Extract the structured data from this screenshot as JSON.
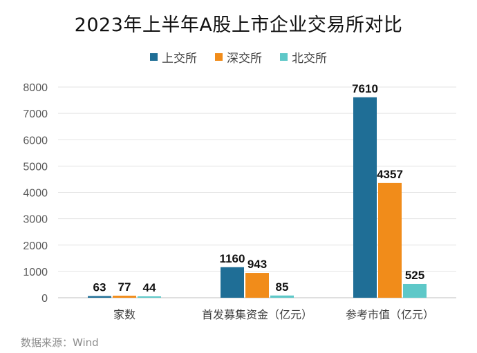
{
  "chart_data": {
    "type": "bar",
    "title": "2023年上半年A股上市企业交易所对比",
    "categories": [
      "家数",
      "首发募集资金（亿元）",
      "参考市值（亿元）"
    ],
    "series": [
      {
        "name": "上交所",
        "color": "#1f6e96",
        "values": [
          63,
          1160,
          7610
        ]
      },
      {
        "name": "深交所",
        "color": "#f18c1a",
        "values": [
          77,
          943,
          4357
        ]
      },
      {
        "name": "北交所",
        "color": "#5ec8c8",
        "values": [
          44,
          85,
          525
        ]
      }
    ],
    "ylim": [
      0,
      8000
    ],
    "yticks": [
      0,
      1000,
      2000,
      3000,
      4000,
      5000,
      6000,
      7000,
      8000
    ],
    "grid": true,
    "legend_position": "top"
  },
  "source": "数据来源：Wind"
}
